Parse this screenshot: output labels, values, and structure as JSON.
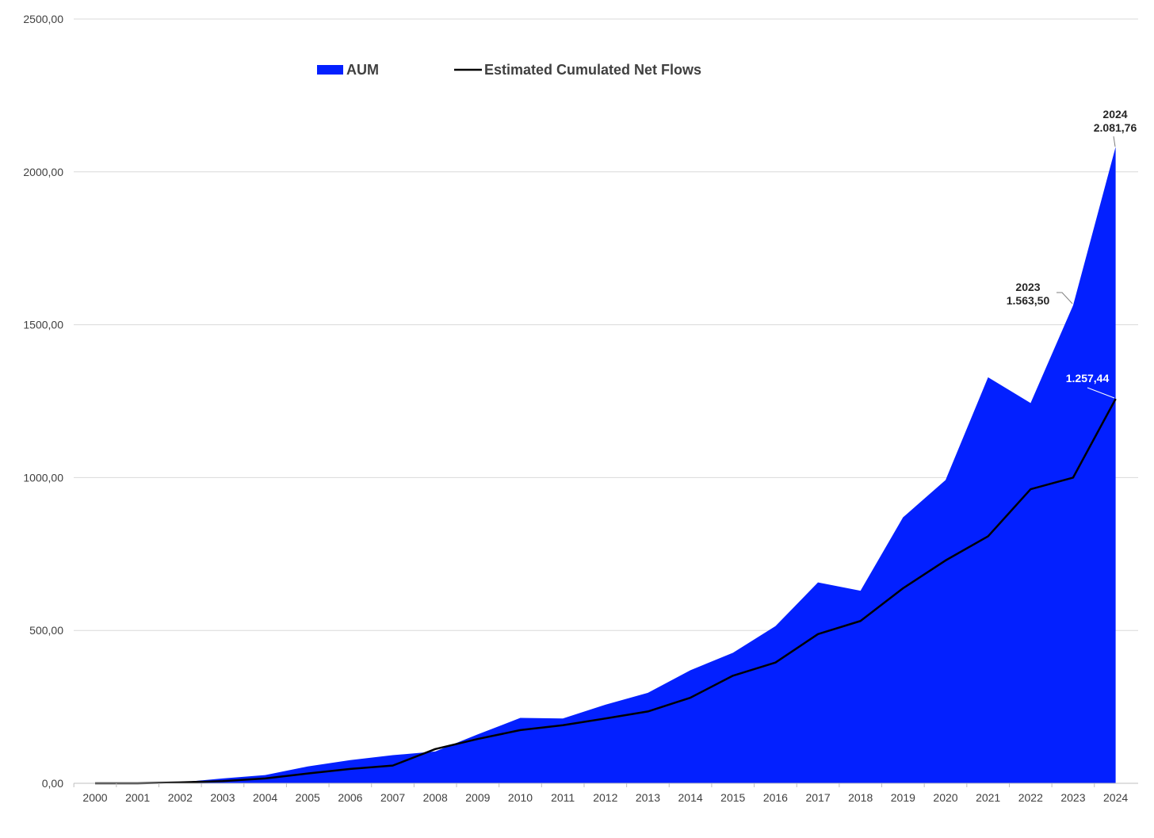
{
  "chart_data": {
    "type": "area",
    "title": "",
    "xlabel": "",
    "ylabel": "",
    "categories": [
      "2000",
      "2001",
      "2002",
      "2003",
      "2004",
      "2005",
      "2006",
      "2007",
      "2008",
      "2009",
      "2010",
      "2011",
      "2012",
      "2013",
      "2014",
      "2015",
      "2016",
      "2017",
      "2018",
      "2019",
      "2020",
      "2021",
      "2022",
      "2023",
      "2024"
    ],
    "y_ticks": [
      "0,00",
      "500,00",
      "1000,00",
      "1500,00",
      "2000,00",
      "2500,00"
    ],
    "ylim": [
      0,
      2500
    ],
    "grid": true,
    "legend_position": "top",
    "series": [
      {
        "name": "AUM",
        "kind": "area",
        "color": "#0320ff",
        "values": [
          0,
          1,
          3,
          16,
          27,
          55,
          76,
          92,
          104,
          160,
          214,
          212,
          257,
          296,
          370,
          427,
          514,
          657,
          630,
          870,
          992,
          1328,
          1244,
          1563.5,
          2081.76
        ]
      },
      {
        "name": "Estimated Cumulated Net Flows",
        "kind": "line",
        "color": "#000000",
        "values": [
          0,
          0,
          3,
          7,
          16,
          32,
          47,
          58,
          112,
          145,
          174,
          190,
          212,
          235,
          280,
          352,
          395,
          488,
          531,
          638,
          729,
          808,
          962,
          1000,
          1257.44
        ]
      }
    ],
    "annotations": [
      {
        "year_label": "2024",
        "value_label": "2.081,76"
      },
      {
        "year_label": "2023",
        "value_label": "1.563,50"
      },
      {
        "year_label": "",
        "value_label": "1.257,44"
      }
    ]
  }
}
